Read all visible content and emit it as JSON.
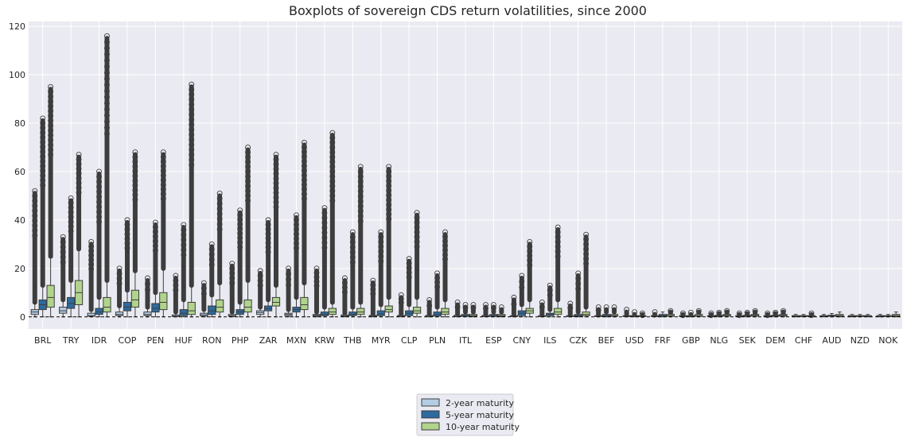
{
  "chart_data": {
    "type": "boxplot",
    "title": "Boxplots of sovereign CDS return volatilities, since 2000",
    "xlabel": "",
    "ylabel": "",
    "ylim": [
      -5,
      122
    ],
    "yticks": [
      0,
      20,
      40,
      60,
      80,
      100,
      120
    ],
    "grid": true,
    "legend_position": "bottom-center",
    "reference_line_y": 0,
    "categories": [
      "BRL",
      "TRY",
      "IDR",
      "COP",
      "PEN",
      "HUF",
      "RON",
      "PHP",
      "ZAR",
      "MXN",
      "KRW",
      "THB",
      "MYR",
      "CLP",
      "PLN",
      "ITL",
      "ESP",
      "CNY",
      "ILS",
      "CZK",
      "BEF",
      "USD",
      "FRF",
      "GBP",
      "NLG",
      "SEK",
      "DEM",
      "CHF",
      "AUD",
      "NZD",
      "NOK"
    ],
    "series": [
      {
        "name": "2-year maturity",
        "color": "#b3cde3",
        "q1": [
          1,
          1.5,
          0.2,
          0.5,
          0.5,
          0.1,
          0.3,
          0.2,
          1,
          0.5,
          0.3,
          0.2,
          0.1,
          0.1,
          0.1,
          0.1,
          0.1,
          0.1,
          0.1,
          0.1,
          0.1,
          0.1,
          0.1,
          0.1,
          0.1,
          0.1,
          0.1,
          0.1,
          0.1,
          0.1,
          0.1
        ],
        "median": [
          2,
          2.5,
          0.5,
          1,
          1,
          0.3,
          0.8,
          0.5,
          1.8,
          1,
          0.6,
          0.4,
          0.3,
          0.3,
          0.3,
          0.3,
          0.3,
          0.3,
          0.3,
          0.3,
          0.3,
          0.3,
          0.3,
          0.3,
          0.3,
          0.3,
          0.3,
          0.3,
          0.3,
          0.3,
          0.3
        ],
        "q3": [
          3,
          4,
          1.5,
          2,
          2,
          0.8,
          1.5,
          1,
          2.5,
          1.5,
          1,
          0.8,
          0.6,
          0.6,
          0.6,
          0.6,
          0.6,
          0.5,
          0.5,
          0.5,
          0.5,
          0.5,
          0.5,
          0.5,
          0.5,
          0.5,
          0.5,
          0.5,
          0.5,
          0.5,
          0.5
        ],
        "whisker_low": [
          0,
          0,
          0,
          0,
          0,
          0,
          0,
          0,
          0,
          0,
          0,
          0,
          0,
          0,
          0,
          0,
          0,
          0,
          0,
          0,
          0,
          0,
          0,
          0,
          0,
          0,
          0,
          0,
          0,
          0,
          0
        ],
        "whisker_high": [
          6,
          7,
          3,
          4.5,
          4,
          2,
          3,
          2,
          4,
          3,
          2,
          1.5,
          1.2,
          1.2,
          1.2,
          1.2,
          1.2,
          1,
          1,
          1,
          1,
          1,
          1,
          1,
          1,
          1,
          1,
          1,
          1,
          1,
          1
        ],
        "flier_max": [
          52,
          33,
          31,
          20,
          16,
          17,
          14,
          22,
          19,
          20,
          20,
          16,
          15,
          9,
          7,
          6,
          5,
          8,
          6,
          5.5,
          4,
          3,
          2,
          1.5,
          1.5,
          1.5,
          1.5,
          1,
          1,
          0.5,
          1
        ]
      },
      {
        "name": "5-year maturity",
        "color": "#2c6b9e",
        "q1": [
          3,
          3.5,
          1,
          2.5,
          2,
          0.5,
          1,
          1,
          2.5,
          2,
          0.5,
          0.5,
          0.5,
          0.5,
          0.3,
          0.2,
          0.2,
          0.5,
          0.5,
          0.2,
          0.2,
          0.1,
          0.2,
          0.1,
          0.2,
          0.2,
          0.2,
          0.1,
          0.2,
          0.1,
          0.1
        ],
        "median": [
          5,
          5.5,
          2,
          4,
          3.5,
          1.5,
          2.5,
          2,
          3.5,
          3,
          1,
          1,
          1.2,
          1.5,
          1,
          0.5,
          0.5,
          1.5,
          1,
          0.5,
          0.5,
          0.3,
          0.5,
          0.3,
          0.4,
          0.4,
          0.4,
          0.3,
          0.4,
          0.3,
          0.3
        ],
        "q3": [
          7,
          8,
          3.5,
          6,
          5.5,
          3,
          4.5,
          3,
          4.5,
          4,
          2,
          2,
          2.5,
          2.5,
          2,
          1,
          1,
          2.5,
          1.5,
          1,
          1,
          0.5,
          1,
          0.5,
          0.7,
          0.7,
          0.7,
          0.5,
          0.7,
          0.5,
          0.5
        ],
        "whisker_low": [
          0,
          0,
          0,
          0,
          0,
          0,
          0,
          0,
          0,
          0,
          0,
          0,
          0,
          0,
          0,
          0,
          0,
          0,
          0,
          0,
          0,
          0,
          0,
          0,
          0,
          0,
          0,
          0,
          0,
          0,
          0
        ],
        "whisker_high": [
          13,
          15,
          8,
          11,
          10,
          7,
          9,
          6,
          7,
          8,
          4,
          4,
          5,
          5,
          4,
          2,
          2,
          5,
          3,
          2,
          2,
          1,
          2,
          1,
          1.4,
          1.4,
          1.4,
          1,
          1.4,
          1,
          1
        ],
        "flier_max": [
          82,
          49,
          60,
          40,
          39,
          38,
          30,
          44,
          40,
          42,
          45,
          35,
          35,
          24,
          18,
          5,
          5,
          17,
          13,
          18,
          4,
          2,
          2,
          1.8,
          1.8,
          1.8,
          1.8,
          1,
          1,
          0.5,
          1
        ]
      },
      {
        "name": "10-year maturity",
        "color": "#b0d48c",
        "q1": [
          4,
          5,
          2,
          4,
          3,
          1,
          2,
          2,
          4.5,
          3,
          1,
          1,
          2,
          1.5,
          1,
          0.2,
          0.2,
          1.5,
          1,
          0.5,
          0.2,
          0.1,
          0.2,
          0.2,
          0.3,
          0.3,
          0.3,
          0.1,
          0.2,
          0.1,
          0.2
        ],
        "median": [
          8,
          10,
          4,
          7,
          6,
          2.5,
          4,
          4,
          6,
          5,
          2,
          2,
          3,
          2.5,
          2,
          0.5,
          0.5,
          2.5,
          2,
          1,
          0.5,
          0.3,
          0.5,
          0.5,
          0.6,
          0.6,
          0.6,
          0.3,
          0.5,
          0.3,
          0.5
        ],
        "q3": [
          13,
          15,
          8,
          11,
          10,
          6,
          7,
          7,
          8,
          8,
          3.5,
          3.5,
          4.5,
          4,
          3.5,
          1,
          1,
          3.5,
          3.5,
          2,
          1,
          0.5,
          1,
          1,
          1,
          1,
          1,
          0.5,
          1,
          0.5,
          1
        ],
        "whisker_low": [
          0,
          0,
          0,
          0,
          0,
          0,
          0,
          0,
          0,
          0,
          0,
          0,
          0,
          0,
          0,
          0,
          0,
          0,
          0,
          0,
          0,
          0,
          0,
          0,
          0,
          0,
          0,
          0,
          0,
          0,
          0
        ],
        "whisker_high": [
          25,
          28,
          15,
          19,
          20,
          13,
          14,
          15,
          13,
          14,
          6,
          6,
          8,
          8,
          7,
          2,
          2,
          7,
          7,
          4,
          2,
          1,
          2,
          2,
          2,
          2,
          2,
          1,
          2,
          1,
          2
        ],
        "flier_max": [
          95,
          67,
          116,
          68,
          68,
          96,
          51,
          70,
          67,
          72,
          76,
          62,
          62,
          43,
          35,
          5,
          4,
          31,
          37,
          34,
          4,
          1.5,
          2.5,
          2.5,
          2.5,
          2.5,
          2.5,
          1.5,
          1.5,
          1,
          1.5
        ]
      }
    ]
  }
}
